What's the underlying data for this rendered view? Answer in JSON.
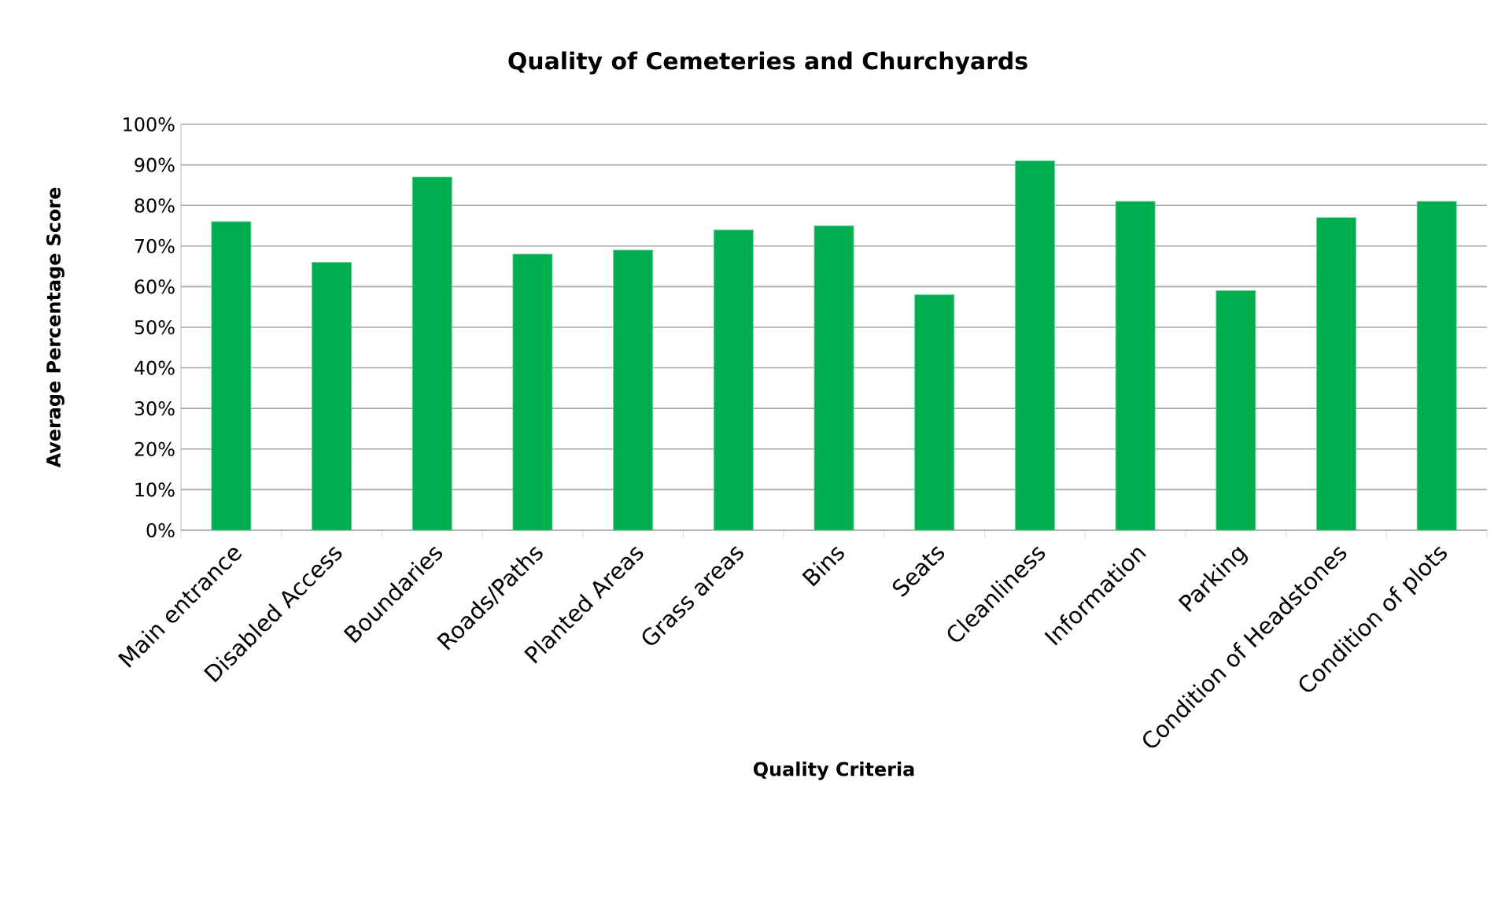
{
  "chart_data": {
    "type": "bar",
    "title": "Quality of Cemeteries and Churchyards",
    "xlabel": "Quality Criteria",
    "ylabel": "Average Percentage Score",
    "categories": [
      "Main entrance",
      "Disabled Access",
      "Boundaries",
      "Roads/Paths",
      "Planted Areas",
      "Grass areas",
      "Bins",
      "Seats",
      "Cleanliness",
      "Information",
      "Parking",
      "Condition of Headstones",
      "Condition of plots"
    ],
    "values": [
      76,
      66,
      87,
      68,
      69,
      74,
      75,
      58,
      91,
      81,
      59,
      77,
      81
    ],
    "color": "#00ad4f",
    "ylim": [
      0,
      100
    ],
    "yticks": [
      {
        "value": 0,
        "label": "0%"
      },
      {
        "value": 10,
        "label": "10%"
      },
      {
        "value": 20,
        "label": "20%"
      },
      {
        "value": 30,
        "label": "30%"
      },
      {
        "value": 40,
        "label": "40%"
      },
      {
        "value": 50,
        "label": "50%"
      },
      {
        "value": 60,
        "label": "60%"
      },
      {
        "value": 70,
        "label": "70%"
      },
      {
        "value": 80,
        "label": "80%"
      },
      {
        "value": 90,
        "label": "90%"
      },
      {
        "value": 100,
        "label": "100%"
      }
    ],
    "grid": "y"
  }
}
